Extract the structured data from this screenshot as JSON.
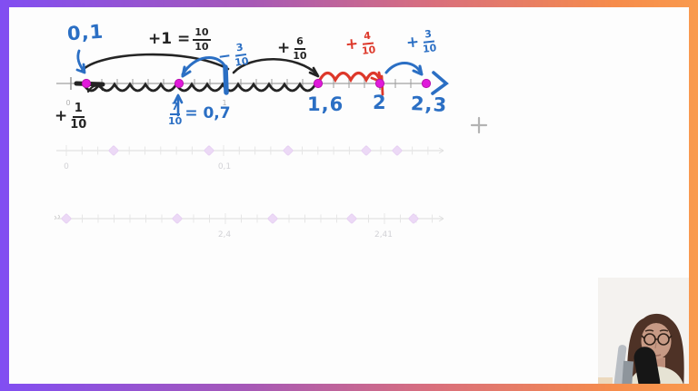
{
  "frame": {
    "gradient_left": "#814ef2",
    "gradient_right": "#f99a4e"
  },
  "colors": {
    "blue": "#2b6fc4",
    "red": "#dd382a",
    "ink": "#242424",
    "magenta_dot": "#e01adb",
    "faint_lavender": "#ecd9f6"
  },
  "annotations": {
    "start_value": "0,1",
    "plus_one": {
      "prefix": "+1 =",
      "num": "10",
      "den": "10"
    },
    "minus_three_tenths": {
      "prefix": "−",
      "num": "3",
      "den": "10"
    },
    "plus_six_tenths": {
      "prefix": "+",
      "num": "6",
      "den": "10"
    },
    "plus_four_tenths": {
      "prefix": "+",
      "num": "4",
      "den": "10"
    },
    "plus_three_tenths": {
      "prefix": "+",
      "num": "3",
      "den": "10"
    },
    "plus_one_tenth": {
      "prefix": "+",
      "num": "1",
      "den": "10"
    },
    "seven_tenths": {
      "num": "7",
      "den": "10",
      "suffix": "= 0,7"
    },
    "point_labels": [
      "1,6",
      "2",
      "2,3"
    ]
  },
  "main_number_line": {
    "tick_labels": [
      "0",
      "1"
    ],
    "marked_values": [
      "0,1",
      "0,7",
      "1,6",
      "2",
      "2,3"
    ]
  },
  "faint_line_top": {
    "tick_labels": [
      "0",
      "0,1"
    ]
  },
  "faint_line_bottom": {
    "tick_labels": [
      "2,4",
      "2,41"
    ]
  }
}
